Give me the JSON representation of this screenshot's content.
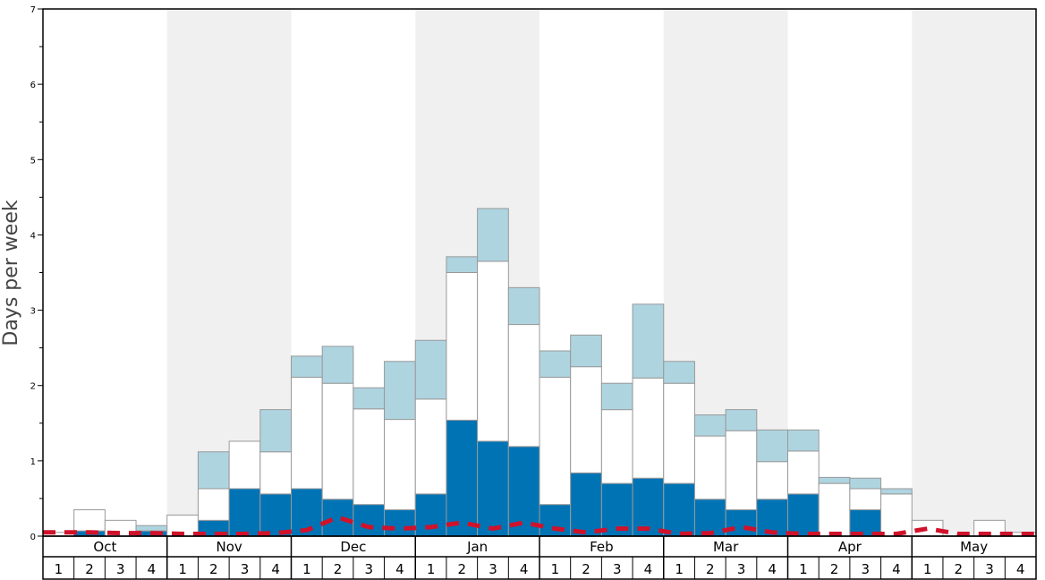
{
  "colors": {
    "light": "#aed4e0",
    "mid": "#ffffff",
    "dark": "#0073b5",
    "avg_line": "#d0122b",
    "shade": "#f0f0f0",
    "bar_stroke": "#999999"
  },
  "chart_data": {
    "type": "bar",
    "stacked": true,
    "ylabel": "Days per week",
    "ylim": [
      0,
      7
    ],
    "yticks": [
      "0",
      "1",
      "2",
      "3",
      "4",
      "5",
      "6",
      "7"
    ],
    "months": [
      "Oct",
      "Nov",
      "Dec",
      "Jan",
      "Feb",
      "Mar",
      "Apr",
      "May"
    ],
    "week_labels": [
      "1",
      "2",
      "3",
      "4"
    ],
    "shaded_months": [
      "Nov",
      "Jan",
      "Mar",
      "May"
    ],
    "series": [
      {
        "name": "dark",
        "values": [
          0.0,
          0.07,
          0.0,
          0.07,
          0.0,
          0.21,
          0.63,
          0.56,
          0.63,
          0.49,
          0.42,
          0.35,
          0.56,
          1.54,
          1.26,
          1.19,
          0.42,
          0.84,
          0.7,
          0.77,
          0.7,
          0.49,
          0.35,
          0.49,
          0.56,
          0.0,
          0.35,
          0.0,
          0.0,
          0.0,
          0.0,
          0.0
        ]
      },
      {
        "name": "mid",
        "values": [
          0.05,
          0.28,
          0.21,
          0.0,
          0.28,
          0.42,
          0.63,
          0.56,
          1.48,
          1.54,
          1.27,
          1.2,
          1.26,
          1.96,
          2.39,
          1.62,
          1.69,
          1.41,
          0.98,
          1.33,
          1.33,
          0.84,
          1.05,
          0.5,
          0.57,
          0.7,
          0.28,
          0.56,
          0.21,
          0.0,
          0.21,
          0.05
        ]
      },
      {
        "name": "light",
        "values": [
          0.0,
          0.0,
          0.0,
          0.07,
          0.0,
          0.49,
          0.0,
          0.56,
          0.28,
          0.49,
          0.28,
          0.77,
          0.78,
          0.21,
          0.7,
          0.49,
          0.35,
          0.42,
          0.35,
          0.98,
          0.29,
          0.28,
          0.28,
          0.42,
          0.28,
          0.08,
          0.14,
          0.07,
          0.0,
          0.0,
          0.0,
          0.0
        ]
      }
    ],
    "average_line": {
      "name": "average",
      "values": [
        0.05,
        0.05,
        0.04,
        0.04,
        0.03,
        0.03,
        0.03,
        0.04,
        0.08,
        0.25,
        0.12,
        0.1,
        0.12,
        0.18,
        0.1,
        0.18,
        0.1,
        0.05,
        0.1,
        0.1,
        0.03,
        0.04,
        0.12,
        0.05,
        0.03,
        0.03,
        0.03,
        0.03,
        0.1,
        0.03,
        0.03,
        0.03
      ]
    }
  }
}
